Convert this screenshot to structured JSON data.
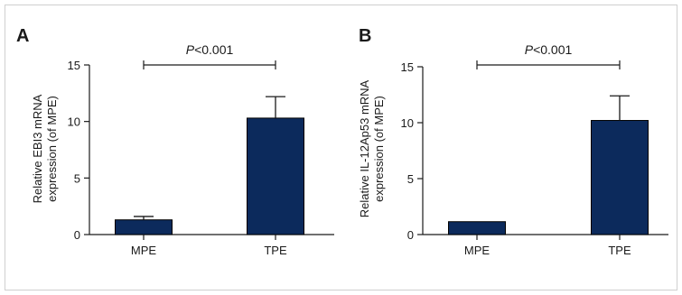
{
  "chart_data": [
    {
      "type": "bar",
      "panel_label": "A",
      "categories": [
        "MPE",
        "TPE"
      ],
      "values": [
        1.3,
        10.3
      ],
      "error_upper": [
        1.6,
        12.2
      ],
      "ylabel_line1": "Relative EBI3 mRNA",
      "ylabel_line2": "expression (of MPE)",
      "ylim": [
        0,
        15
      ],
      "yticks": [
        "0",
        "5",
        "10",
        "15"
      ],
      "annotation": "P<0.001",
      "bar_color": "#0c2a5c"
    },
    {
      "type": "bar",
      "panel_label": "B",
      "categories": [
        "MPE",
        "TPE"
      ],
      "values": [
        1.15,
        10.2
      ],
      "error_upper": [
        1.15,
        12.4
      ],
      "ylabel_line1": "Relative IL-12Ap53 mRNA",
      "ylabel_line2": "expression (of MPE)",
      "ylim": [
        0,
        15
      ],
      "yticks": [
        "0",
        "5",
        "10",
        "15"
      ],
      "annotation": "P<0.001",
      "bar_color": "#0c2a5c"
    }
  ]
}
